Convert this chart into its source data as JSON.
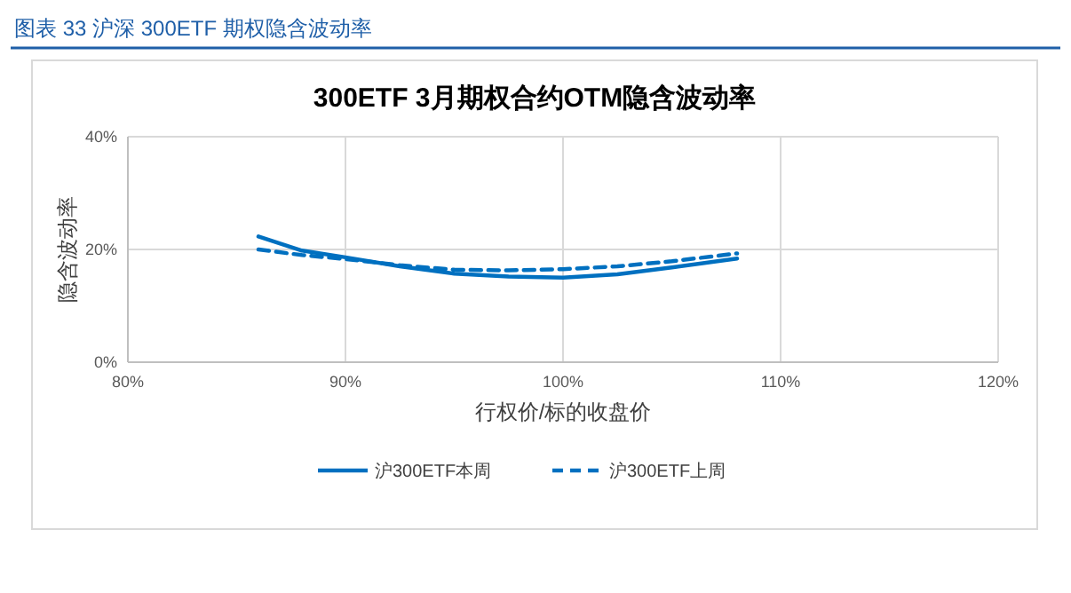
{
  "chart_data": {
    "type": "line",
    "title": "300ETF 3月期权合约OTM隐含波动率",
    "subtitle": "图表 33 沪深 300ETF 期权隐含波动率",
    "xlabel": "行权价/标的收盘价",
    "ylabel": "隐含波动率",
    "xlim": [
      80,
      120
    ],
    "xticks": [
      {
        "value": 80,
        "label": "80%"
      },
      {
        "value": 90,
        "label": "90%"
      },
      {
        "value": 100,
        "label": "100%"
      },
      {
        "value": 110,
        "label": "110%"
      },
      {
        "value": 120,
        "label": "120%"
      }
    ],
    "ylim": [
      0,
      40
    ],
    "yticks": [
      {
        "value": 0,
        "label": "0%"
      },
      {
        "value": 20,
        "label": "20%"
      },
      {
        "value": 40,
        "label": "40%"
      }
    ],
    "grid": true,
    "legend": "bottom",
    "series": [
      {
        "name": "沪300ETF本周",
        "color": "#0070c0",
        "line_style": "solid",
        "x": [
          86,
          88,
          90,
          92.5,
          95,
          97.5,
          100,
          102.5,
          105,
          108
        ],
        "values": [
          22.3,
          19.8,
          18.6,
          17.0,
          15.7,
          15.2,
          15.0,
          15.6,
          16.8,
          18.4
        ]
      },
      {
        "name": "沪300ETF上周",
        "color": "#0070c0",
        "line_style": "dashed",
        "x": [
          86,
          88,
          90,
          92.5,
          95,
          97.5,
          100,
          102.5,
          105,
          108
        ],
        "values": [
          20.0,
          19.0,
          18.3,
          17.2,
          16.4,
          16.3,
          16.5,
          17.0,
          17.9,
          19.3
        ]
      }
    ]
  }
}
